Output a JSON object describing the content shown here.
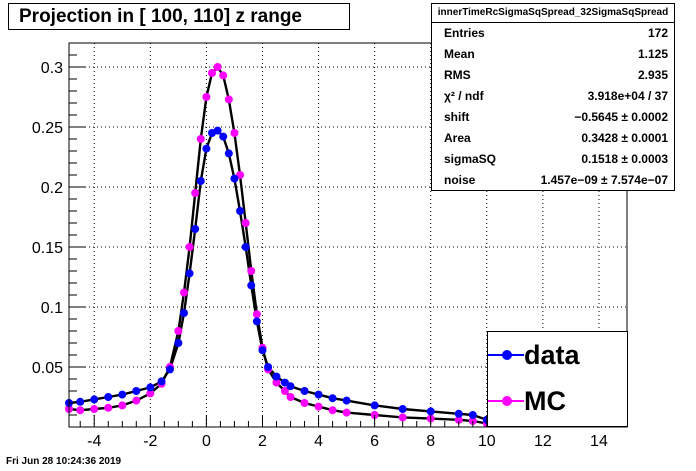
{
  "title": "Projection in [ 100, 110] z range",
  "footer": "Fri Jun 28 10:24:36 2019",
  "stats": {
    "title": "innerTimeRcSigmaSqSpread_32SigmaSqSpread",
    "rows": [
      {
        "label": "Entries",
        "value": "172"
      },
      {
        "label": "Mean",
        "value": "1.125"
      },
      {
        "label": "RMS",
        "value": "2.935"
      },
      {
        "label": "χ² / ndf",
        "value": "3.918e+04 / 37"
      },
      {
        "label": "shift",
        "value": "−0.5645 ± 0.0002"
      },
      {
        "label": "Area",
        "value": "0.3428 ± 0.0001"
      },
      {
        "label": "sigmaSQ",
        "value": "0.1518 ± 0.0003"
      },
      {
        "label": "noise",
        "value": "1.457e−09 ± 7.574e−07"
      }
    ]
  },
  "legend": [
    {
      "label": "data",
      "color": "#0000ff"
    },
    {
      "label": "MC",
      "color": "#ff00ff"
    }
  ],
  "chart_data": {
    "type": "scatter",
    "title": "Projection in [ 100, 110] z range",
    "xlim": [
      -4.9,
      15.0
    ],
    "ylim": [
      0,
      0.32
    ],
    "xticks": [
      -4,
      -2,
      0,
      2,
      4,
      6,
      8,
      10,
      12,
      14
    ],
    "yticks": [
      0.05,
      0.1,
      0.15,
      0.2,
      0.25,
      0.3
    ],
    "ytick_labels": [
      "0.05",
      "0.1",
      "0.15",
      "0.2",
      "0.25",
      "0.3"
    ],
    "grid": true,
    "legend_position": "bottom-right",
    "series": [
      {
        "name": "data",
        "color": "#0000ff",
        "x": [
          -4.9,
          -4.5,
          -4.0,
          -3.5,
          -3.0,
          -2.5,
          -2.0,
          -1.6,
          -1.3,
          -1.0,
          -0.8,
          -0.6,
          -0.4,
          -0.2,
          0.0,
          0.2,
          0.4,
          0.6,
          0.8,
          1.0,
          1.2,
          1.4,
          1.6,
          1.8,
          2.0,
          2.2,
          2.5,
          2.8,
          3.0,
          3.5,
          4.0,
          4.5,
          5.0,
          6.0,
          7.0,
          8.0,
          9.0,
          9.5,
          10.0
        ],
        "y": [
          0.02,
          0.021,
          0.023,
          0.025,
          0.027,
          0.03,
          0.033,
          0.038,
          0.048,
          0.07,
          0.095,
          0.128,
          0.165,
          0.205,
          0.232,
          0.245,
          0.247,
          0.242,
          0.228,
          0.207,
          0.18,
          0.15,
          0.118,
          0.088,
          0.064,
          0.05,
          0.042,
          0.037,
          0.034,
          0.03,
          0.027,
          0.024,
          0.022,
          0.018,
          0.015,
          0.013,
          0.011,
          0.01,
          0.006
        ]
      },
      {
        "name": "MC",
        "color": "#ff00ff",
        "x": [
          -4.9,
          -4.5,
          -4.0,
          -3.5,
          -3.0,
          -2.5,
          -2.0,
          -1.6,
          -1.3,
          -1.0,
          -0.8,
          -0.6,
          -0.4,
          -0.2,
          0.0,
          0.2,
          0.4,
          0.6,
          0.8,
          1.0,
          1.2,
          1.4,
          1.6,
          1.8,
          2.0,
          2.2,
          2.5,
          2.8,
          3.0,
          3.5,
          4.0,
          4.5,
          5.0,
          6.0,
          7.0,
          8.0,
          9.0,
          9.5,
          10.0
        ],
        "y": [
          0.015,
          0.014,
          0.015,
          0.016,
          0.018,
          0.022,
          0.028,
          0.036,
          0.05,
          0.08,
          0.112,
          0.15,
          0.195,
          0.24,
          0.275,
          0.295,
          0.3,
          0.293,
          0.273,
          0.245,
          0.21,
          0.17,
          0.13,
          0.094,
          0.066,
          0.048,
          0.037,
          0.03,
          0.025,
          0.02,
          0.017,
          0.014,
          0.012,
          0.01,
          0.008,
          0.007,
          0.006,
          0.005,
          0.003
        ]
      }
    ]
  }
}
